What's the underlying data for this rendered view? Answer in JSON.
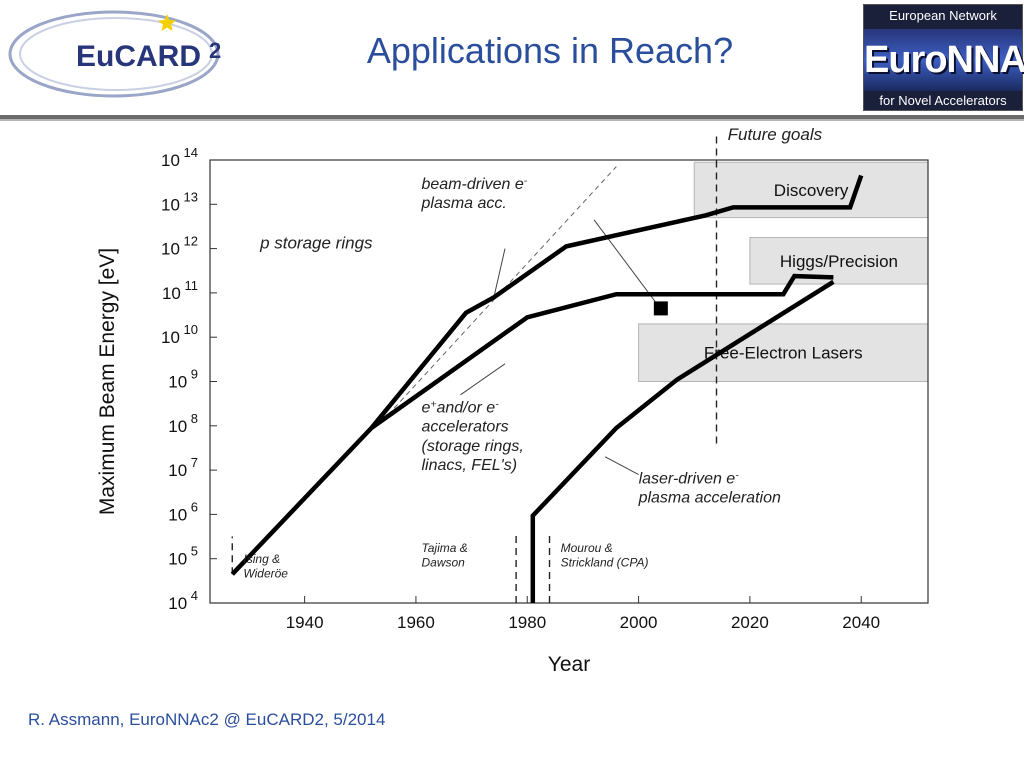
{
  "slide": {
    "title": "Applications in Reach?",
    "footer": "R. Assmann, EuroNNAc2 @ EuCARD2, 5/2014"
  },
  "logos": {
    "left": {
      "text": "EuCARD",
      "superscript": "2",
      "icon": "star-icon"
    },
    "right": {
      "top": "European Network",
      "main": "EuroNNAc",
      "bottom": "for Novel Accelerators"
    }
  },
  "colors": {
    "title": "#2b4e9c",
    "footer": "#2b4e9c",
    "box_fill": "#e3e3e3",
    "star": "#f5d000"
  },
  "chart_data": {
    "type": "line",
    "xlabel": "Year",
    "ylabel": "Maximum Beam Energy [eV]",
    "xlim": [
      1923,
      2052
    ],
    "ylim_log10": [
      4,
      14
    ],
    "log_y": true,
    "x_ticks": [
      1940,
      1960,
      1980,
      2000,
      2020,
      2040
    ],
    "y_tick_exponents": [
      4,
      5,
      6,
      7,
      8,
      9,
      10,
      11,
      12,
      13,
      14
    ],
    "y_tick_base": "10",
    "series": [
      {
        "points": [
          [
            1927,
            4.65
          ],
          [
            1952,
            7.95
          ],
          [
            1969,
            10.55
          ],
          [
            1974,
            10.9
          ],
          [
            1987,
            12.05
          ],
          [
            2012,
            12.75
          ],
          [
            2017,
            12.93
          ],
          [
            2038,
            12.93
          ],
          [
            2040,
            13.65
          ]
        ]
      },
      {
        "points": [
          [
            1952,
            7.95
          ],
          [
            1980,
            10.45
          ],
          [
            1996,
            10.97
          ],
          [
            2026,
            10.97
          ],
          [
            2028,
            11.38
          ],
          [
            2035,
            11.35
          ]
        ]
      },
      {
        "points": [
          [
            1981,
            4.0
          ],
          [
            1981,
            5.97
          ],
          [
            1996,
            7.95
          ],
          [
            2007,
            9.05
          ],
          [
            2035,
            11.25
          ]
        ]
      }
    ],
    "dashed_trend": {
      "points": [
        [
          1955,
          8.25
        ],
        [
          1996,
          13.85
        ]
      ]
    },
    "square_point": {
      "x": 2004,
      "y": 10.65
    },
    "boxes": [
      {
        "label": "Discovery",
        "x0": 2010,
        "x1": 2052,
        "y0": 12.7,
        "y1": 13.95
      },
      {
        "label": "Higgs/Precision",
        "x0": 2020,
        "x1": 2052,
        "y0": 11.2,
        "y1": 12.25
      },
      {
        "label": "Free-Electron Lasers",
        "x0": 2000,
        "x1": 2052,
        "y0": 9.0,
        "y1": 10.3
      }
    ],
    "vlines": [
      {
        "x": 1927,
        "y0": 4.65,
        "y1": 5.5
      },
      {
        "x": 1978,
        "y0": 4.0,
        "y1": 5.6
      },
      {
        "x": 1984,
        "y0": 4.0,
        "y1": 5.6
      },
      {
        "x": 2014,
        "y0": 7.6,
        "y1": 14.6
      }
    ],
    "annotations": [
      {
        "lines": [
          "Future goals"
        ],
        "x": 2016,
        "y": 14.45,
        "size": 17,
        "italic": true
      },
      {
        "lines": [
          "beam-driven e",
          "plasma acc."
        ],
        "sup": "-",
        "x": 1961,
        "y": 13.35,
        "size": 16,
        "italic": true
      },
      {
        "lines": [
          "p storage rings"
        ],
        "x": 1932,
        "y": 12.0,
        "size": 17,
        "italic": true
      },
      {
        "lines": [
          "e",
          "accelerators",
          "(storage rings,",
          "linacs, FEL's)"
        ],
        "first_line_rich": [
          "e",
          "+",
          "and/or e",
          "-"
        ],
        "x": 1961,
        "y": 8.3,
        "size": 16,
        "italic": true
      },
      {
        "lines": [
          "laser-driven e",
          "plasma acceleration"
        ],
        "sup": "-",
        "x": 2000,
        "y": 6.7,
        "size": 16,
        "italic": true
      },
      {
        "lines": [
          "Ising &",
          "Wideröe"
        ],
        "x": 1929,
        "y": 4.9,
        "size": 12,
        "italic": true
      },
      {
        "lines": [
          "Tajima &",
          "Dawson"
        ],
        "x": 1961,
        "y": 5.15,
        "size": 12,
        "italic": true
      },
      {
        "lines": [
          "Mourou &",
          "Strickland (CPA)"
        ],
        "x": 1986,
        "y": 5.15,
        "size": 12,
        "italic": true
      }
    ],
    "leader_lines": [
      [
        [
          1976,
          12.0
        ],
        [
          1974,
          10.9
        ]
      ],
      [
        [
          1992,
          12.65
        ],
        [
          2003,
          10.8
        ]
      ],
      [
        [
          1976,
          9.4
        ],
        [
          1968,
          8.7
        ]
      ],
      [
        [
          2000,
          6.9
        ],
        [
          1994,
          7.3
        ]
      ]
    ]
  }
}
